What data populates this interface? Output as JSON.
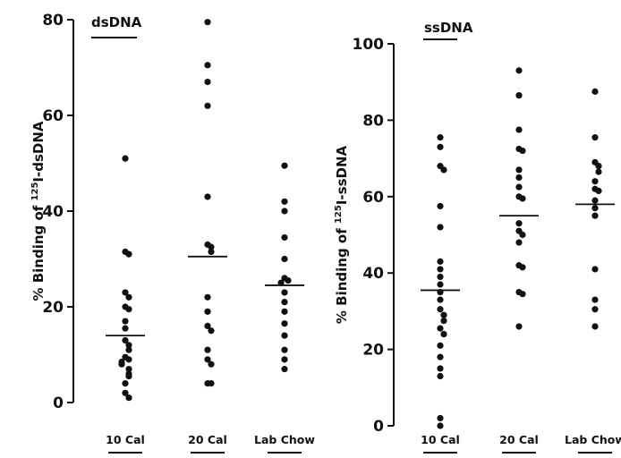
{
  "chart_data": [
    {
      "type": "scatter",
      "title": "dsDNA",
      "ylabel_prefix": "% Binding of ",
      "ylabel_sup": "125",
      "ylabel_suffix": "I-dsDNA",
      "categories": [
        "10 Cal",
        "20 Cal",
        "Lab Chow"
      ],
      "ylim": [
        0,
        80
      ],
      "yticks": [
        0,
        20,
        40,
        60,
        80
      ],
      "means": [
        14,
        30.5,
        24.5
      ],
      "series": [
        {
          "values": [
            51,
            31.5,
            31,
            23,
            22,
            20,
            19.5,
            17,
            15.5,
            13,
            12,
            11,
            9.5,
            9,
            8.5,
            8,
            7,
            6,
            5.5,
            4,
            2,
            1
          ]
        },
        {
          "values": [
            79.5,
            70.5,
            67,
            62,
            43,
            33,
            32.5,
            31.5,
            22,
            19,
            16,
            15,
            11,
            9,
            8,
            4,
            4
          ]
        },
        {
          "values": [
            49.5,
            42,
            40,
            34.5,
            30,
            26,
            25.5,
            25,
            23,
            21,
            19,
            16.5,
            14,
            11,
            9,
            7
          ]
        }
      ]
    },
    {
      "type": "scatter",
      "title": "ssDNA",
      "ylabel_prefix": "% Binding of ",
      "ylabel_sup": "125",
      "ylabel_suffix": "I-ssDNA",
      "categories": [
        "10 Cal",
        "20 Cal",
        "Lab Chow"
      ],
      "ylim": [
        0,
        100
      ],
      "yticks": [
        0,
        20,
        40,
        60,
        80,
        100
      ],
      "means": [
        35.5,
        55,
        58
      ],
      "series": [
        {
          "values": [
            75.5,
            73,
            68,
            67,
            57.5,
            52,
            43,
            41,
            39,
            37,
            35,
            33,
            30.5,
            29,
            27.5,
            25.5,
            24,
            21,
            18,
            15,
            13,
            2,
            0
          ]
        },
        {
          "values": [
            93,
            86.5,
            77.5,
            72.5,
            72,
            67,
            65,
            62.5,
            60,
            59.5,
            53,
            51,
            50,
            48,
            42,
            41.5,
            35,
            34.5,
            26
          ]
        },
        {
          "values": [
            87.5,
            75.5,
            69,
            68,
            66.5,
            64,
            62,
            61.5,
            59,
            57,
            55,
            41,
            33,
            30.5,
            26
          ]
        }
      ]
    }
  ]
}
